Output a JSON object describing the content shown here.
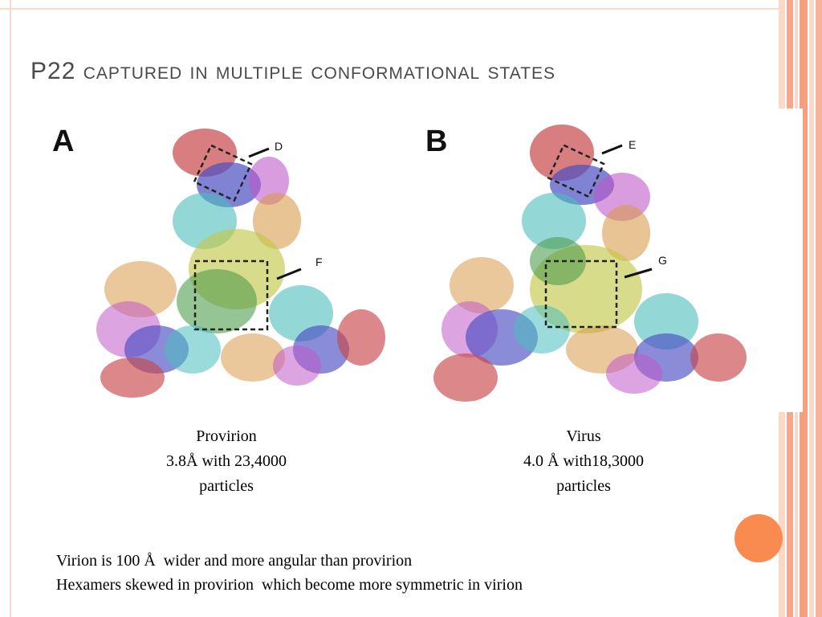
{
  "slide": {
    "title": "P22 captured in multiple conformational states"
  },
  "figures": {
    "a": {
      "letter": "A",
      "callouts": [
        "D",
        "F"
      ]
    },
    "b": {
      "letter": "B",
      "callouts": [
        "E",
        "G"
      ]
    }
  },
  "captions": {
    "a": {
      "line1": "Provirion",
      "line2": "3.8Å with 23,4000",
      "line3": "particles"
    },
    "b": {
      "line1": "Virus",
      "line2": "4.0 Å with18,3000",
      "line3": "particles"
    }
  },
  "notes": {
    "line1": "Virion is 100 Å  wider and more angular than provirion",
    "line2": "Hexamers skewed in provirion  which become more symmetric in virion"
  },
  "colors": {
    "accent": "#f98a50",
    "stripe": "#f7a88c",
    "title": "#4a4a4a"
  }
}
